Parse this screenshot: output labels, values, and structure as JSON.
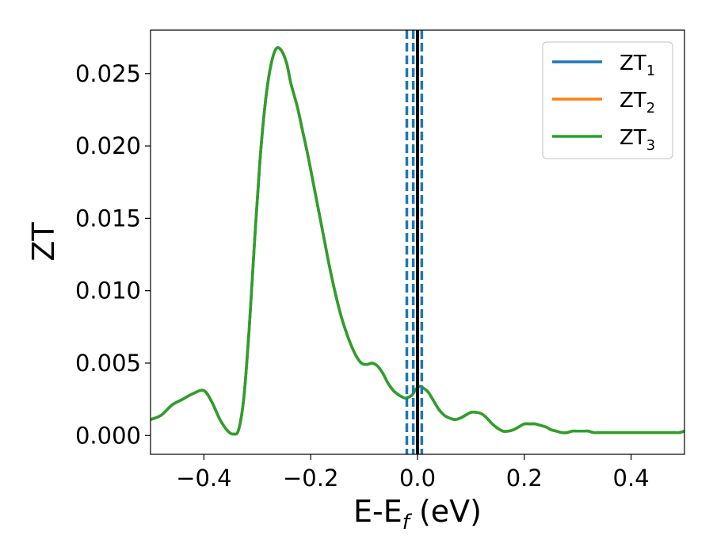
{
  "chart_data": {
    "type": "line",
    "xlabel": {
      "main": "E-E",
      "sub": "f",
      "unit": " (eV)"
    },
    "ylabel": "ZT",
    "xlim": [
      -0.5,
      0.5
    ],
    "ylim": [
      -0.0013,
      0.028
    ],
    "x_ticks": [
      -0.4,
      -0.2,
      0.0,
      0.2,
      0.4
    ],
    "x_tick_labels": [
      "−0.4",
      "−0.2",
      "0.0",
      "0.2",
      "0.4"
    ],
    "y_ticks": [
      0.0,
      0.005,
      0.01,
      0.015,
      0.02,
      0.025
    ],
    "y_tick_labels": [
      "0.000",
      "0.005",
      "0.010",
      "0.015",
      "0.020",
      "0.025"
    ],
    "grid": false,
    "legend_position": "top-right",
    "x": [
      -0.5,
      -0.48,
      -0.46,
      -0.44,
      -0.42,
      -0.4,
      -0.385,
      -0.37,
      -0.355,
      -0.345,
      -0.335,
      -0.325,
      -0.315,
      -0.305,
      -0.295,
      -0.285,
      -0.275,
      -0.265,
      -0.255,
      -0.245,
      -0.237,
      -0.225,
      -0.215,
      -0.205,
      -0.195,
      -0.185,
      -0.175,
      -0.165,
      -0.155,
      -0.145,
      -0.135,
      -0.125,
      -0.115,
      -0.105,
      -0.095,
      -0.085,
      -0.075,
      -0.065,
      -0.055,
      -0.045,
      -0.035,
      -0.025,
      -0.02,
      -0.01,
      -0.005,
      0.0,
      0.005,
      0.01,
      0.02,
      0.03,
      0.04,
      0.05,
      0.06,
      0.07,
      0.08,
      0.09,
      0.1,
      0.11,
      0.12,
      0.13,
      0.14,
      0.15,
      0.16,
      0.17,
      0.18,
      0.19,
      0.2,
      0.21,
      0.22,
      0.23,
      0.24,
      0.25,
      0.26,
      0.27,
      0.28,
      0.29,
      0.3,
      0.31,
      0.32,
      0.33,
      0.34,
      0.35,
      0.36,
      0.37,
      0.38,
      0.39,
      0.4,
      0.41,
      0.42,
      0.43,
      0.44,
      0.45,
      0.46,
      0.47,
      0.48,
      0.49,
      0.5
    ],
    "series": [
      {
        "name": "ZT",
        "sub": "1",
        "color": "#1f77b4",
        "values": [
          0.0011,
          0.0014,
          0.0021,
          0.0025,
          0.0029,
          0.0031,
          0.0023,
          0.0011,
          0.0003,
          0.0001,
          0.0004,
          0.0027,
          0.0075,
          0.0135,
          0.019,
          0.023,
          0.0255,
          0.0267,
          0.0266,
          0.0257,
          0.0243,
          0.0227,
          0.021,
          0.0193,
          0.0174,
          0.0155,
          0.0136,
          0.0117,
          0.01,
          0.0085,
          0.0073,
          0.0063,
          0.0055,
          0.005,
          0.0049,
          0.005,
          0.0048,
          0.0043,
          0.0036,
          0.0031,
          0.0028,
          0.0026,
          0.0026,
          0.0028,
          0.0031,
          0.0033,
          0.0034,
          0.0033,
          0.003,
          0.0024,
          0.0018,
          0.0014,
          0.0012,
          0.0011,
          0.0012,
          0.0014,
          0.0016,
          0.0016,
          0.0015,
          0.0012,
          0.0008,
          0.0005,
          0.0003,
          0.0003,
          0.0004,
          0.0006,
          0.0008,
          0.0008,
          0.0008,
          0.0007,
          0.0006,
          0.0004,
          0.0003,
          0.0002,
          0.0002,
          0.0003,
          0.0003,
          0.0003,
          0.0003,
          0.0002,
          0.0002,
          0.0002,
          0.0002,
          0.0002,
          0.0002,
          0.0002,
          0.0002,
          0.0002,
          0.0002,
          0.0002,
          0.0002,
          0.0002,
          0.0002,
          0.0002,
          0.0002,
          0.0002,
          0.0003
        ]
      },
      {
        "name": "ZT",
        "sub": "2",
        "color": "#ff7f0e",
        "values": [
          0.0011,
          0.0014,
          0.0021,
          0.0025,
          0.0029,
          0.0031,
          0.0023,
          0.0011,
          0.0003,
          0.0001,
          0.0004,
          0.0027,
          0.0075,
          0.0135,
          0.019,
          0.023,
          0.0255,
          0.0267,
          0.0266,
          0.0257,
          0.0243,
          0.0227,
          0.021,
          0.0193,
          0.0174,
          0.0155,
          0.0136,
          0.0117,
          0.01,
          0.0085,
          0.0073,
          0.0063,
          0.0055,
          0.005,
          0.0049,
          0.005,
          0.0048,
          0.0043,
          0.0036,
          0.0031,
          0.0028,
          0.0026,
          0.0026,
          0.0028,
          0.0031,
          0.0033,
          0.0034,
          0.0033,
          0.003,
          0.0024,
          0.0018,
          0.0014,
          0.0012,
          0.0011,
          0.0012,
          0.0014,
          0.0016,
          0.0016,
          0.0015,
          0.0012,
          0.0008,
          0.0005,
          0.0003,
          0.0003,
          0.0004,
          0.0006,
          0.0008,
          0.0008,
          0.0008,
          0.0007,
          0.0006,
          0.0004,
          0.0003,
          0.0002,
          0.0002,
          0.0003,
          0.0003,
          0.0003,
          0.0003,
          0.0002,
          0.0002,
          0.0002,
          0.0002,
          0.0002,
          0.0002,
          0.0002,
          0.0002,
          0.0002,
          0.0002,
          0.0002,
          0.0002,
          0.0002,
          0.0002,
          0.0002,
          0.0002,
          0.0002,
          0.0003
        ]
      },
      {
        "name": "ZT",
        "sub": "3",
        "color": "#2ca02c",
        "values": [
          0.0011,
          0.0014,
          0.0021,
          0.0025,
          0.0029,
          0.0031,
          0.0023,
          0.0011,
          0.0003,
          0.0001,
          0.0004,
          0.0027,
          0.0075,
          0.0135,
          0.019,
          0.023,
          0.0255,
          0.0267,
          0.0266,
          0.0257,
          0.0243,
          0.0227,
          0.021,
          0.0193,
          0.0174,
          0.0155,
          0.0136,
          0.0117,
          0.01,
          0.0085,
          0.0073,
          0.0063,
          0.0055,
          0.005,
          0.0049,
          0.005,
          0.0048,
          0.0043,
          0.0036,
          0.0031,
          0.0028,
          0.0026,
          0.0026,
          0.0028,
          0.0031,
          0.0033,
          0.0034,
          0.0033,
          0.003,
          0.0024,
          0.0018,
          0.0014,
          0.0012,
          0.0011,
          0.0012,
          0.0014,
          0.0016,
          0.0016,
          0.0015,
          0.0012,
          0.0008,
          0.0005,
          0.0003,
          0.0003,
          0.0004,
          0.0006,
          0.0008,
          0.0008,
          0.0008,
          0.0007,
          0.0006,
          0.0004,
          0.0003,
          0.0002,
          0.0002,
          0.0003,
          0.0003,
          0.0003,
          0.0003,
          0.0002,
          0.0002,
          0.0002,
          0.0002,
          0.0002,
          0.0002,
          0.0002,
          0.0002,
          0.0002,
          0.0002,
          0.0002,
          0.0002,
          0.0002,
          0.0002,
          0.0002,
          0.0002,
          0.0002,
          0.0003
        ]
      }
    ],
    "vlines": [
      {
        "x": 0.0,
        "style": "solid",
        "color": "#000000"
      },
      {
        "x": -0.02,
        "style": "dashed",
        "color": "#1f77b4"
      },
      {
        "x": -0.008,
        "style": "dashed",
        "color": "#1f77b4"
      },
      {
        "x": 0.008,
        "style": "dashed",
        "color": "#1f77b4"
      }
    ]
  }
}
